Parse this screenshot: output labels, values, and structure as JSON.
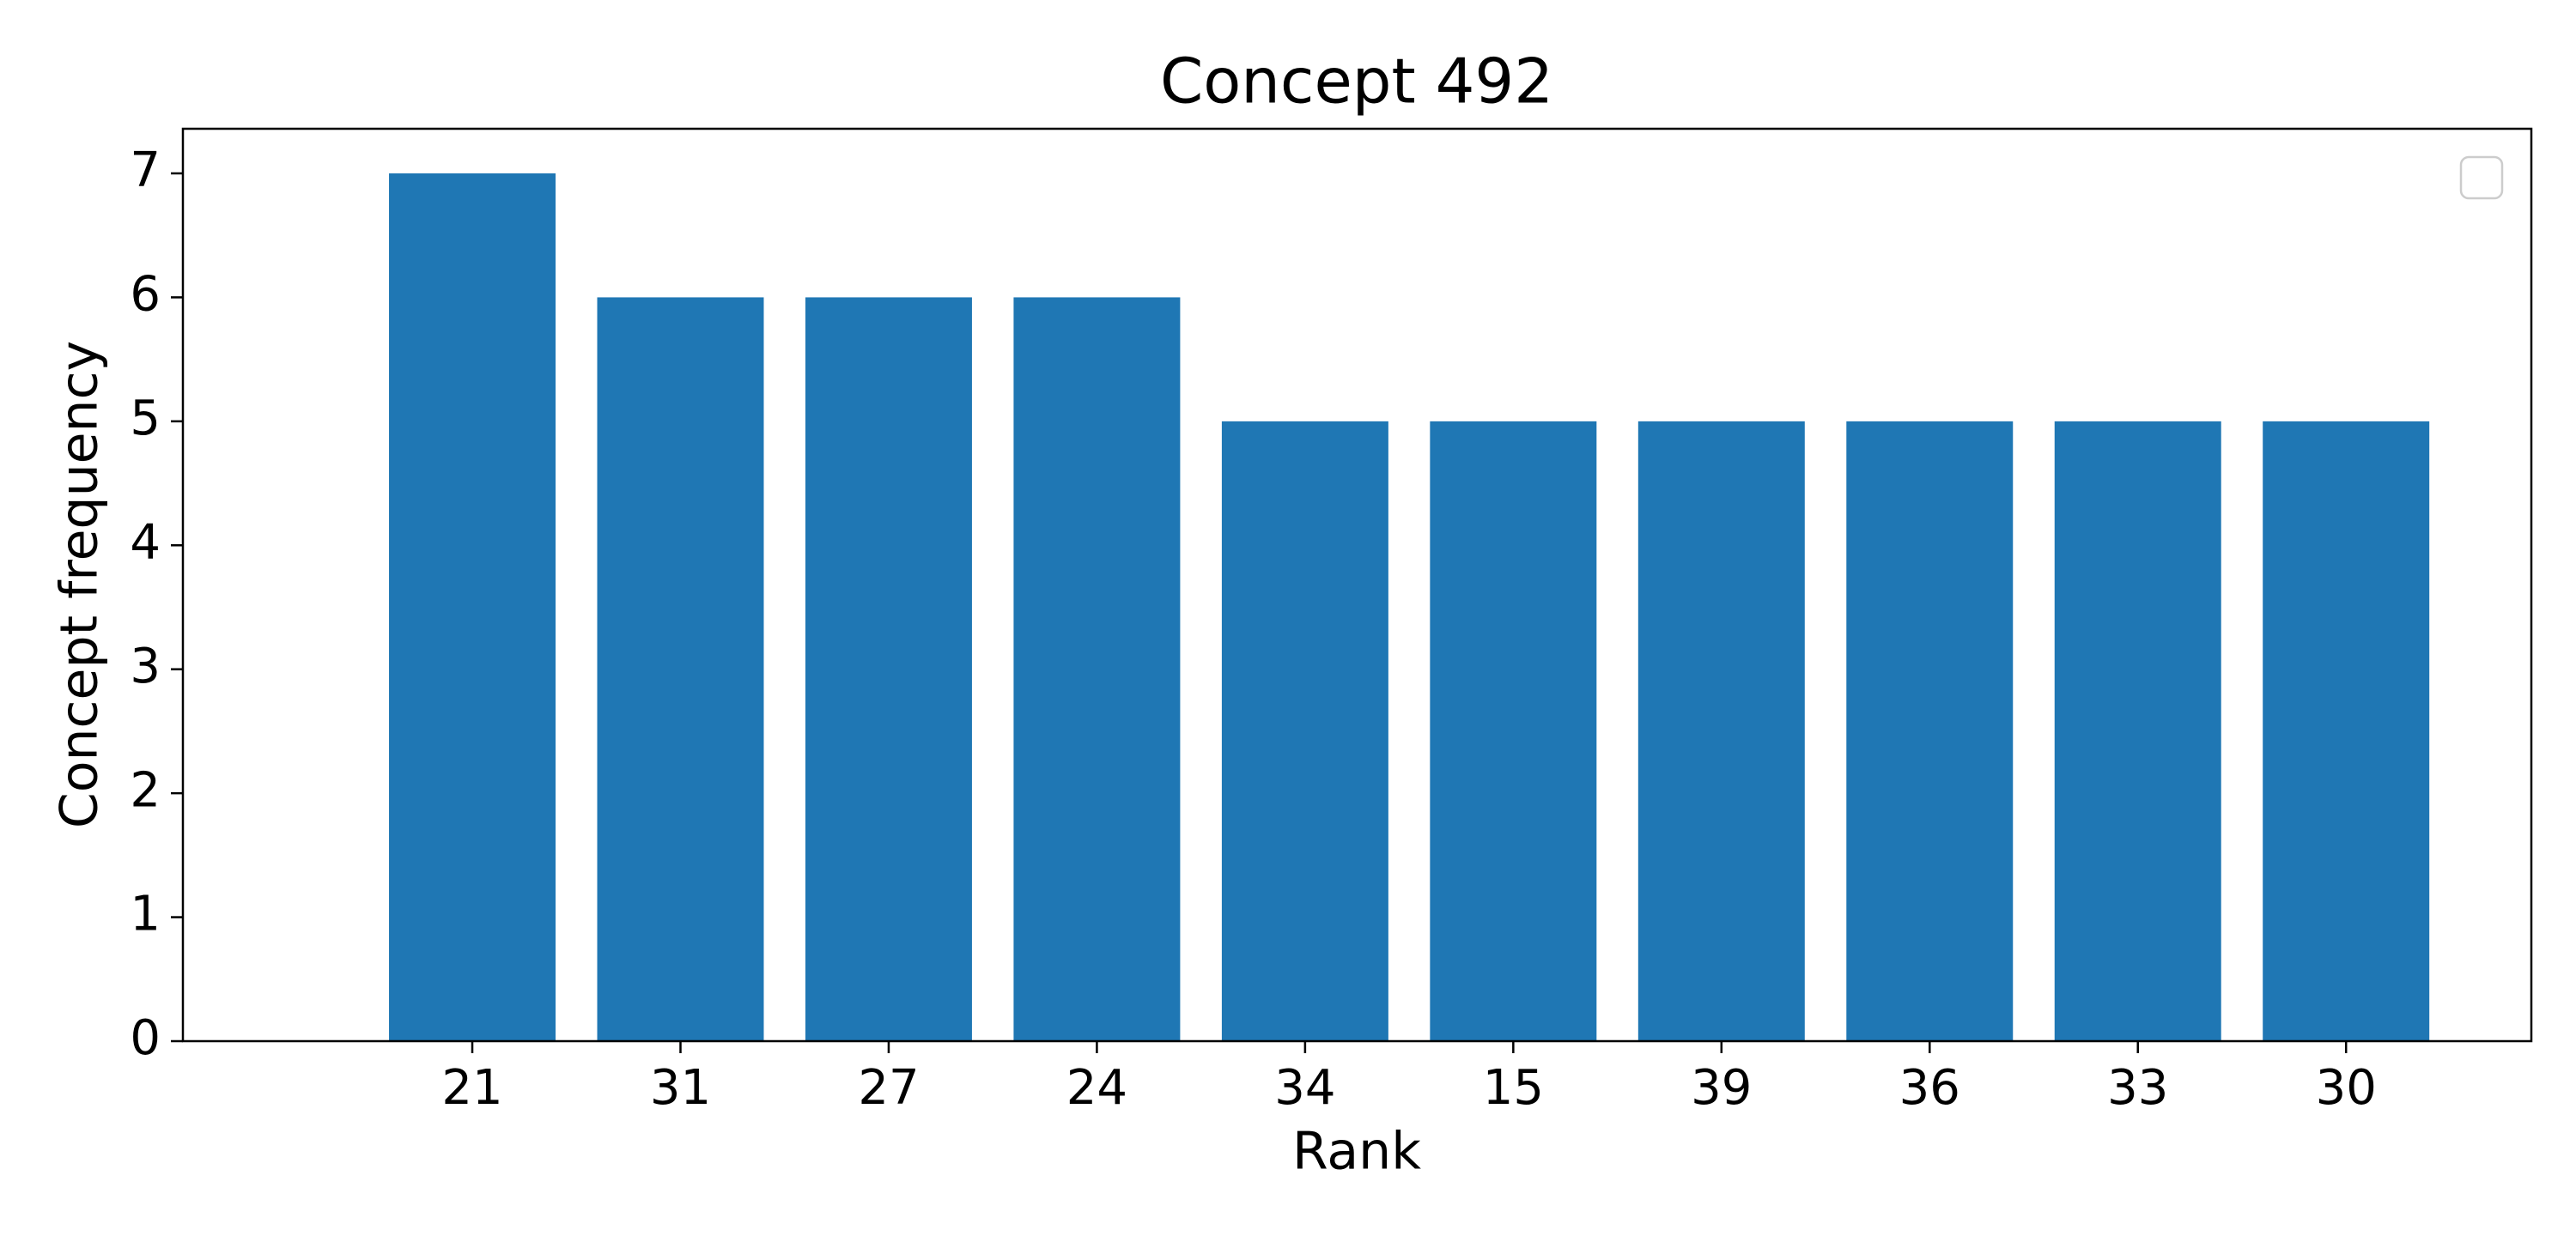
{
  "chart_data": {
    "type": "bar",
    "title": "Concept 492",
    "x_label": "Rank",
    "y_label": "Concept frequency",
    "categories": [
      "21",
      "31",
      "27",
      "24",
      "34",
      "15",
      "39",
      "36",
      "33",
      "30"
    ],
    "values": [
      7,
      6,
      6,
      6,
      5,
      5,
      5,
      5,
      5,
      5
    ],
    "color": "#1f77b4",
    "ylim": [
      0,
      7.36
    ],
    "yticks": [
      0,
      1,
      2,
      3,
      4,
      5,
      6,
      7
    ],
    "grid": false
  }
}
